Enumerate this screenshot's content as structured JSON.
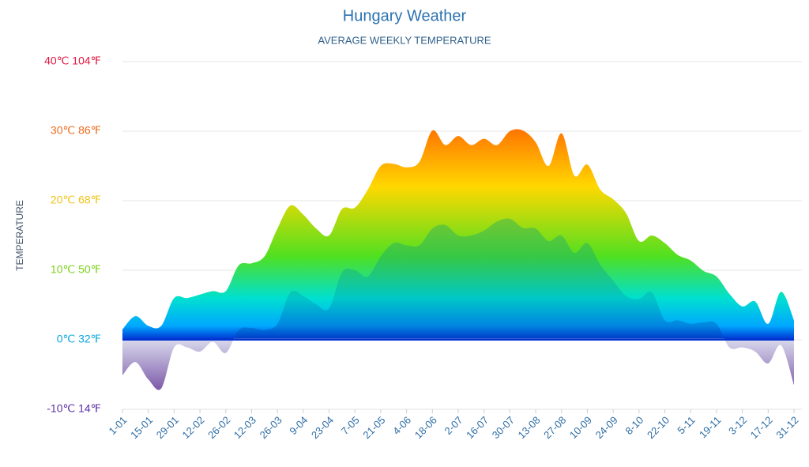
{
  "chart_data": {
    "type": "area",
    "title": "Hungary Weather",
    "subtitle": "AVERAGE WEEKLY TEMPERATURE",
    "y_label": "TEMPERATURE",
    "categories": [
      "1-01",
      null,
      "15-01",
      null,
      "29-01",
      null,
      "12-02",
      null,
      "26-02",
      null,
      "12-03",
      null,
      "26-03",
      null,
      "9-04",
      null,
      "23-04",
      null,
      "7-05",
      null,
      "21-05",
      null,
      "4-06",
      null,
      "18-06",
      null,
      "2-07",
      null,
      "16-07",
      null,
      "30-07",
      null,
      "13-08",
      null,
      "27-08",
      null,
      "10-09",
      null,
      "24-09",
      null,
      "8-10",
      null,
      "22-10",
      null,
      "5-11",
      null,
      "19-11",
      null,
      "3-12",
      null,
      "17-12",
      null,
      "31-12"
    ],
    "series": [
      {
        "values": [
          1.5,
          3.4,
          2,
          2,
          6,
          6,
          6.5,
          7,
          7,
          10.7,
          11,
          12,
          16,
          19.3,
          18,
          16,
          15,
          18.8,
          19,
          21.6,
          25,
          25.3,
          24.8,
          25.6,
          30.1,
          28,
          29.3,
          28,
          28.9,
          28,
          30,
          30.1,
          28.4,
          25,
          29.7,
          23.6,
          25.2,
          21.6,
          20.2,
          18.2,
          14.2,
          15,
          13.9,
          12.2,
          11.4,
          9.9,
          9.1,
          6.6,
          4.8,
          5.5,
          2.3,
          6.9,
          2.8
        ]
      },
      {
        "values": [
          -5.1,
          -3.2,
          -5.7,
          -7,
          -1.1,
          -1.1,
          -1.7,
          -0.3,
          -1.9,
          1.4,
          1.7,
          1.4,
          2.3,
          6.8,
          6.3,
          5.1,
          4.5,
          9.7,
          10,
          9.1,
          12,
          13.9,
          13.6,
          13.6,
          16,
          16.5,
          15,
          15,
          15.7,
          17,
          17.4,
          16.1,
          16,
          14.2,
          15,
          12.5,
          13.9,
          10.8,
          8.5,
          6.3,
          5.9,
          6.8,
          2.8,
          2.8,
          2.3,
          2.5,
          2.3,
          -1.1,
          -1.1,
          -1.7,
          -3.4,
          -0.8,
          -6.5
        ]
      }
    ],
    "ylim": [
      -10,
      40
    ],
    "yticks": [
      {
        "value": -10,
        "label": "-10℃ 14℉"
      },
      {
        "value": 0,
        "label": "0℃ 32℉"
      },
      {
        "value": 10,
        "label": "10℃ 50℉"
      },
      {
        "value": 20,
        "label": "20℃ 68℉"
      },
      {
        "value": 30,
        "label": "30℃ 86℉"
      },
      {
        "value": 40,
        "label": "40℃ 104℉"
      }
    ],
    "grid": true
  }
}
